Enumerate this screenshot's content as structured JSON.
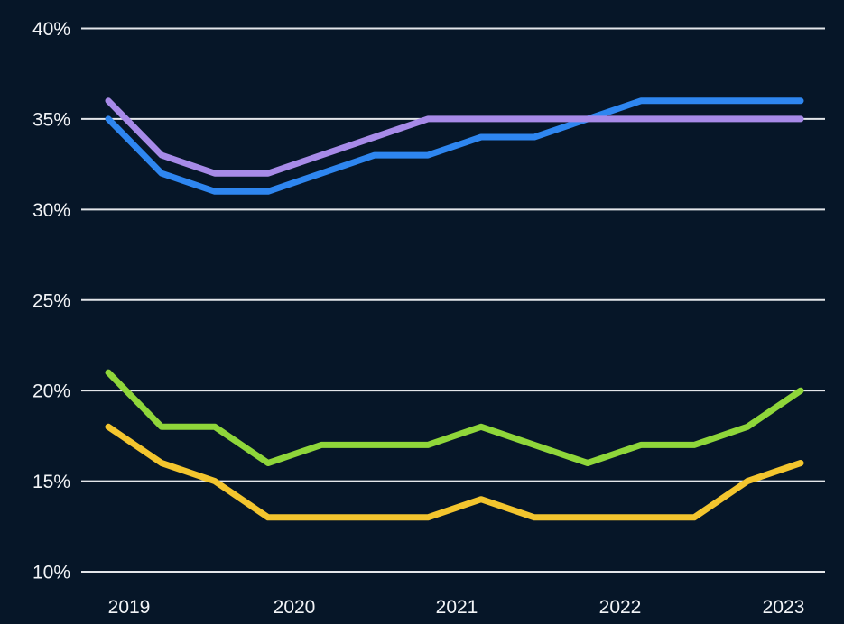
{
  "colors": {
    "background": "#061628",
    "gridline": "#e3e6ea",
    "tick_text": "#f2f4f7",
    "series_blue": "#2e86f0",
    "series_purple": "#a78ae8",
    "series_green": "#8fd63a",
    "series_yellow": "#f3c52e"
  },
  "chart_data": {
    "type": "line",
    "title": "",
    "xlabel": "",
    "ylabel": "",
    "x_tick_labels": [
      "2019",
      "2020",
      "2021",
      "2022",
      "2023"
    ],
    "y_tick_labels": [
      "40%",
      "35%",
      "30%",
      "25%",
      "20%",
      "15%",
      "10%"
    ],
    "y_tick_values": [
      40,
      35,
      30,
      25,
      20,
      15,
      10
    ],
    "ylim": [
      10,
      40
    ],
    "unit": "%",
    "grid": true,
    "legend_position": "none",
    "n_points": 14,
    "series": [
      {
        "name": "blue",
        "color": "#2e86f0",
        "values": [
          35,
          32,
          31,
          31,
          32,
          33,
          33,
          34,
          34,
          35,
          36,
          36,
          36,
          36
        ]
      },
      {
        "name": "purple",
        "color": "#a78ae8",
        "values": [
          36,
          33,
          32,
          32,
          33,
          34,
          35,
          35,
          35,
          35,
          35,
          35,
          35,
          35
        ]
      },
      {
        "name": "green",
        "color": "#8fd63a",
        "values": [
          21,
          18,
          18,
          16,
          17,
          17,
          17,
          18,
          17,
          16,
          17,
          17,
          18,
          20
        ]
      },
      {
        "name": "yellow",
        "color": "#f3c52e",
        "values": [
          18,
          16,
          15,
          13,
          13,
          13,
          13,
          14,
          13,
          13,
          13,
          13,
          15,
          16
        ]
      }
    ]
  }
}
